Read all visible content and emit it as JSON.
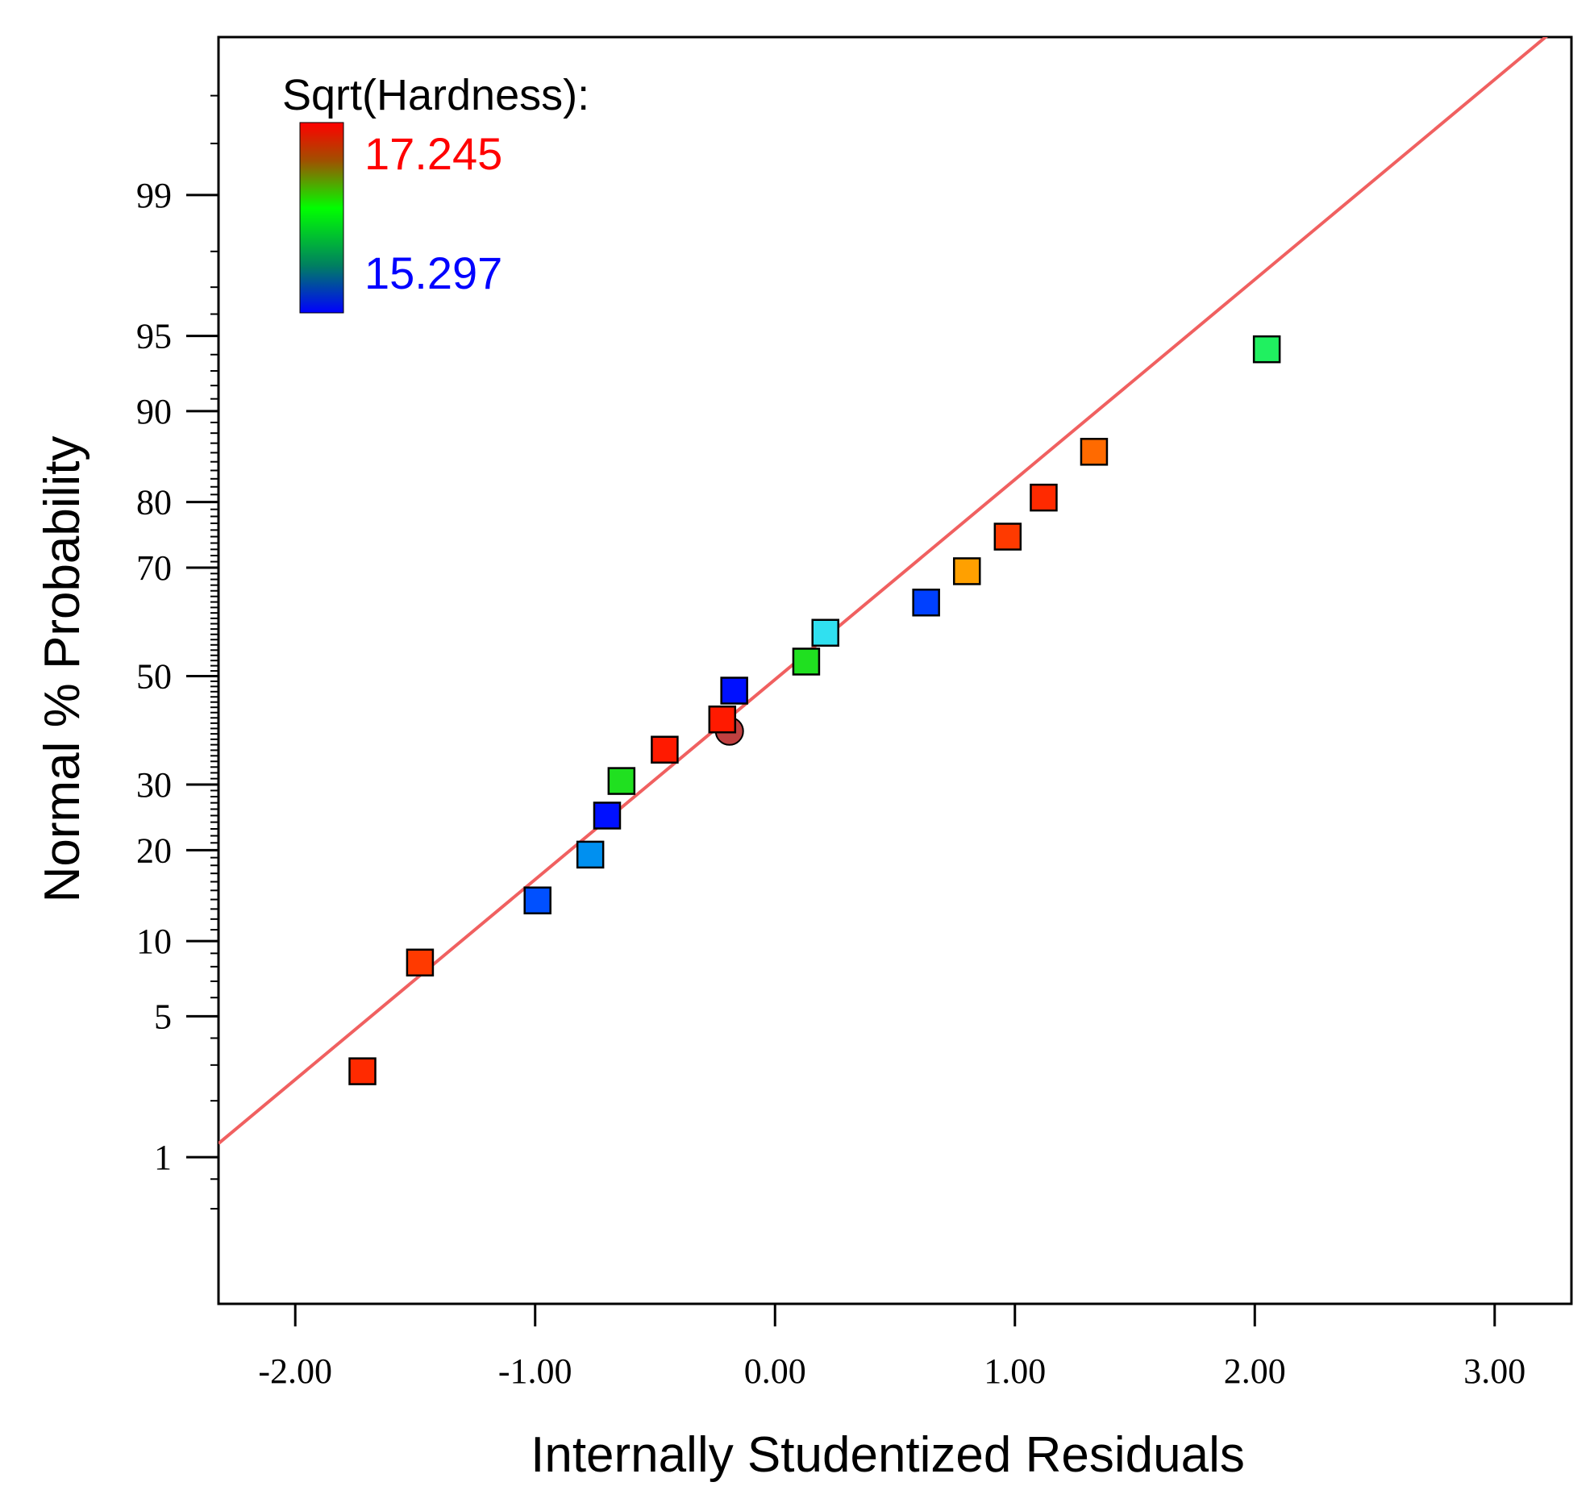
{
  "chart_data": {
    "type": "scatter",
    "title": "",
    "xlabel": "Internally Studentized Residuals",
    "ylabel": "Normal % Probability",
    "xlim": [
      -2.32,
      3.32
    ],
    "ylim_percent": [
      0.12,
      99.9
    ],
    "y_scale": "normal-probability",
    "x_ticks": [
      -2,
      -1,
      0,
      1,
      2,
      3
    ],
    "x_tick_labels": [
      "-2.00",
      "-1.00",
      "0.00",
      "1.00",
      "2.00",
      "3.00"
    ],
    "y_ticks": [
      1,
      5,
      10,
      20,
      30,
      50,
      70,
      80,
      90,
      95,
      99
    ],
    "y_tick_labels": [
      "1",
      "5",
      "10",
      "20",
      "30",
      "50",
      "70",
      "80",
      "90",
      "95",
      "99"
    ],
    "grid": false,
    "legend": {
      "title": "Sqrt(Hardness):",
      "max_label": "17.245",
      "min_label": "15.297",
      "max_color": "#ff0000",
      "min_color": "#0000ff",
      "placement": "top-left"
    },
    "reference_line": {
      "color": "#f06060",
      "points": [
        {
          "x": -2.32,
          "p": 1.19
        },
        {
          "x": 3.32,
          "p": 99.93
        }
      ]
    },
    "points": [
      {
        "x": -1.72,
        "p": 2.8,
        "color": "#ff2a00"
      },
      {
        "x": -1.48,
        "p": 8.3,
        "color": "#ff3a00"
      },
      {
        "x": -0.99,
        "p": 13.9,
        "color": "#0050ff"
      },
      {
        "x": -0.77,
        "p": 19.4,
        "color": "#0090f0"
      },
      {
        "x": -0.7,
        "p": 25.0,
        "color": "#0010ff"
      },
      {
        "x": -0.64,
        "p": 30.6,
        "color": "#20e020"
      },
      {
        "x": -0.46,
        "p": 36.1,
        "color": "#ff1a00"
      },
      {
        "x": -0.22,
        "p": 41.7,
        "color": "#ff1a00"
      },
      {
        "x": -0.17,
        "p": 47.2,
        "color": "#0010ff"
      },
      {
        "x": 0.13,
        "p": 52.8,
        "color": "#20e020"
      },
      {
        "x": 0.21,
        "p": 58.3,
        "color": "#30e0f0"
      },
      {
        "x": 0.63,
        "p": 63.9,
        "color": "#0040ff"
      },
      {
        "x": 0.8,
        "p": 69.4,
        "color": "#ffa000"
      },
      {
        "x": 0.97,
        "p": 75.0,
        "color": "#ff3a00"
      },
      {
        "x": 1.12,
        "p": 80.6,
        "color": "#ff2a00"
      },
      {
        "x": 1.33,
        "p": 86.1,
        "color": "#ff6a00"
      },
      {
        "x": 2.05,
        "p": 94.3,
        "color": "#20f060"
      }
    ],
    "highlight": {
      "x": -0.19,
      "p": 39.5,
      "color": "#c04040"
    }
  }
}
